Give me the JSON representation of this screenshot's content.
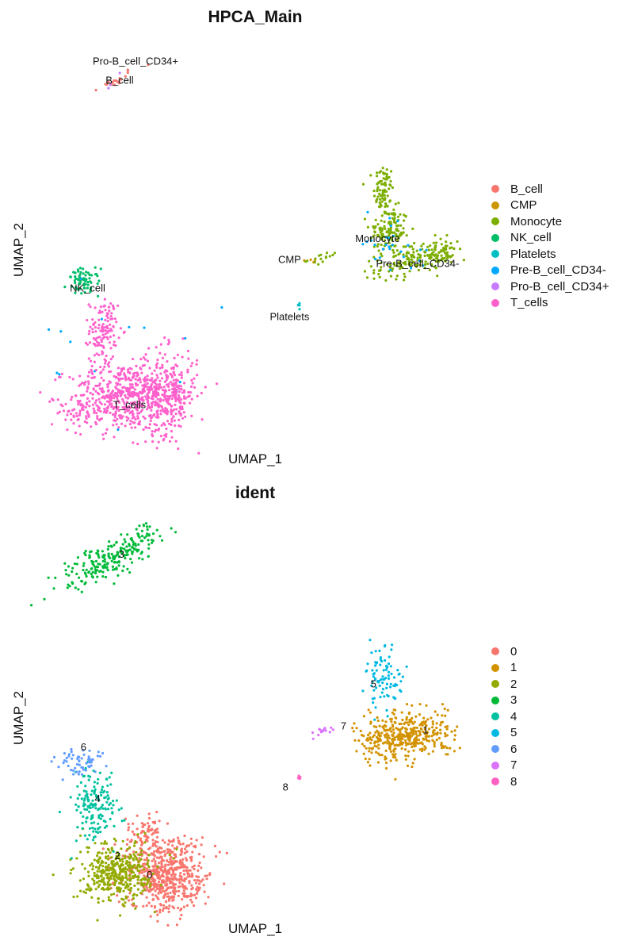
{
  "chart_data": [
    {
      "type": "scatter",
      "title": "HPCA_Main",
      "xlabel": "UMAP_1",
      "ylabel": "UMAP_2",
      "grid": false,
      "legend": "right",
      "x_ticks": [],
      "y_ticks": [],
      "series": [
        {
          "name": "B_cell",
          "color": "#F8766D",
          "clusters": [
            {
              "center": [
                -4.2,
                12.5
              ],
              "spread": [
                0.7,
                0.12
              ],
              "angle": 30,
              "n": 20
            }
          ]
        },
        {
          "name": "CMP",
          "color": "#CD9600",
          "clusters": [
            {
              "center": [
                5.7,
                3.1
              ],
              "spread": [
                0.2,
                0.08
              ],
              "angle": 0,
              "n": 4
            }
          ]
        },
        {
          "name": "Monocyte",
          "color": "#7CAE00",
          "clusters": [
            {
              "center": [
                9.3,
                6.8
              ],
              "spread": [
                0.25,
                0.7
              ],
              "angle": 0,
              "n": 80
            },
            {
              "center": [
                9.6,
                4.7
              ],
              "spread": [
                0.5,
                0.6
              ],
              "angle": 0,
              "n": 130
            },
            {
              "center": [
                10.8,
                3.2
              ],
              "spread": [
                1.0,
                0.4
              ],
              "angle": 15,
              "n": 150
            },
            {
              "center": [
                12.2,
                3.5
              ],
              "spread": [
                0.4,
                0.3
              ],
              "angle": 0,
              "n": 40
            },
            {
              "center": [
                6.4,
                3.3
              ],
              "spread": [
                0.45,
                0.12
              ],
              "angle": 10,
              "n": 15
            }
          ]
        },
        {
          "name": "NK_cell",
          "color": "#00BE67",
          "clusters": [
            {
              "center": [
                -5.7,
                2.0
              ],
              "spread": [
                0.4,
                0.35
              ],
              "angle": 0,
              "n": 70
            }
          ]
        },
        {
          "name": "Platelets",
          "color": "#00BFC4",
          "clusters": [
            {
              "center": [
                5.1,
                0.8
              ],
              "spread": [
                0.05,
                0.08
              ],
              "angle": 0,
              "n": 6
            }
          ]
        },
        {
          "name": "Pre-B_cell_CD34-",
          "color": "#00A9FF",
          "clusters": [
            {
              "center": [
                9.5,
                4.6
              ],
              "spread": [
                0.6,
                0.6
              ],
              "angle": 0,
              "n": 15
            },
            {
              "center": [
                10.5,
                3.3
              ],
              "spread": [
                0.9,
                0.4
              ],
              "angle": 0,
              "n": 12
            },
            {
              "center": [
                -4.8,
                -2.0
              ],
              "spread": [
                2.0,
                2.0
              ],
              "angle": 0,
              "n": 15
            }
          ]
        },
        {
          "name": "Pro-B_cell_CD34+",
          "color": "#C77CFF",
          "clusters": [
            {
              "center": [
                -4.2,
                12.5
              ],
              "spread": [
                0.7,
                0.12
              ],
              "angle": 30,
              "n": 3
            }
          ]
        },
        {
          "name": "T_cells",
          "color": "#FF61CC",
          "clusters": [
            {
              "center": [
                -4.7,
                -0.5
              ],
              "spread": [
                0.35,
                0.8
              ],
              "angle": 0,
              "n": 120
            },
            {
              "center": [
                -3.8,
                -4.0
              ],
              "spread": [
                1.3,
                0.9
              ],
              "angle": 0,
              "n": 450
            },
            {
              "center": [
                -1.6,
                -3.8
              ],
              "spread": [
                0.8,
                1.1
              ],
              "angle": 0,
              "n": 350
            },
            {
              "center": [
                -5.8,
                -4.9
              ],
              "spread": [
                0.5,
                0.3
              ],
              "angle": 0,
              "n": 40
            }
          ]
        }
      ],
      "annotations": [
        {
          "text": "Pro-B_cell_CD34+",
          "x": -3.1,
          "y": 13.4
        },
        {
          "text": "B_cell",
          "x": -3.9,
          "y": 12.4
        },
        {
          "text": "Monocyte",
          "x": 9.0,
          "y": 4.1
        },
        {
          "text": "CMP",
          "x": 4.6,
          "y": 3.0
        },
        {
          "text": "Pre-B_cell_CD34-",
          "x": 11.0,
          "y": 2.8
        },
        {
          "text": "NK_cell",
          "x": -5.5,
          "y": 1.5
        },
        {
          "text": "Platelets",
          "x": 4.6,
          "y": 0.0
        },
        {
          "text": "T_cells",
          "x": -3.4,
          "y": -4.6
        }
      ]
    },
    {
      "type": "scatter",
      "title": "ident",
      "xlabel": "UMAP_1",
      "ylabel": "UMAP_2",
      "grid": false,
      "legend": "right",
      "x_ticks": [],
      "y_ticks": [],
      "series": [
        {
          "name": "0",
          "color": "#F8766D",
          "clusters": [
            {
              "center": [
                -1.6,
                -4.0
              ],
              "spread": [
                1.0,
                1.0
              ],
              "angle": 0,
              "n": 600
            },
            {
              "center": [
                -2.6,
                -1.9
              ],
              "spread": [
                0.45,
                0.4
              ],
              "angle": 0,
              "n": 60
            }
          ]
        },
        {
          "name": "1",
          "color": "#D39200",
          "clusters": [
            {
              "center": [
                10.4,
                3.2
              ],
              "spread": [
                1.1,
                0.6
              ],
              "angle": 10,
              "n": 400
            }
          ]
        },
        {
          "name": "2",
          "color": "#93AA00",
          "clusters": [
            {
              "center": [
                -4.1,
                -4.0
              ],
              "spread": [
                0.9,
                0.75
              ],
              "angle": 0,
              "n": 400
            }
          ]
        },
        {
          "name": "3",
          "color": "#00BA38",
          "clusters": [
            {
              "center": [
                -4.2,
                12.5
              ],
              "spread": [
                1.4,
                0.45
              ],
              "angle": 28,
              "n": 230
            }
          ]
        },
        {
          "name": "4",
          "color": "#00C19F",
          "clusters": [
            {
              "center": [
                -5.1,
                -0.5
              ],
              "spread": [
                0.5,
                0.8
              ],
              "angle": 0,
              "n": 160
            }
          ]
        },
        {
          "name": "5",
          "color": "#00B9E3",
          "clusters": [
            {
              "center": [
                9.3,
                6.2
              ],
              "spread": [
                0.45,
                0.8
              ],
              "angle": 0,
              "n": 90
            }
          ]
        },
        {
          "name": "6",
          "color": "#619CFF",
          "clusters": [
            {
              "center": [
                -6.0,
                1.8
              ],
              "spread": [
                0.55,
                0.35
              ],
              "angle": 0,
              "n": 60
            }
          ]
        },
        {
          "name": "7",
          "color": "#DB72FB",
          "clusters": [
            {
              "center": [
                6.3,
                3.4
              ],
              "spread": [
                0.35,
                0.1
              ],
              "angle": 12,
              "n": 14
            }
          ]
        },
        {
          "name": "8",
          "color": "#FF61C3",
          "clusters": [
            {
              "center": [
                5.1,
                1.0
              ],
              "spread": [
                0.05,
                0.06
              ],
              "angle": 0,
              "n": 5
            }
          ]
        }
      ],
      "annotations": [
        {
          "text": "3",
          "x": -3.8,
          "y": 12.5
        },
        {
          "text": "5",
          "x": 8.8,
          "y": 5.7
        },
        {
          "text": "7",
          "x": 7.3,
          "y": 3.5
        },
        {
          "text": "1",
          "x": 11.4,
          "y": 3.3
        },
        {
          "text": "6",
          "x": -5.7,
          "y": 2.4
        },
        {
          "text": "8",
          "x": 4.4,
          "y": 0.3
        },
        {
          "text": "4",
          "x": -5.0,
          "y": -0.3
        },
        {
          "text": "2",
          "x": -4.0,
          "y": -3.3
        },
        {
          "text": "0",
          "x": -2.4,
          "y": -4.3
        }
      ]
    }
  ]
}
